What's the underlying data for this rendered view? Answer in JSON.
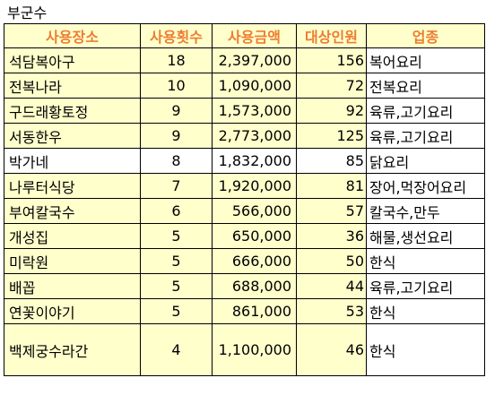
{
  "sheet_title": "부군수",
  "headers": {
    "place": "사용장소",
    "count": "사용횟수",
    "amount": "사용금액",
    "people": "대상인원",
    "business": "업종"
  },
  "rows": [
    {
      "place": "석담복아구",
      "count": "18",
      "amount": "2,397,000",
      "people": "156",
      "business": "복어요리"
    },
    {
      "place": "전복나라",
      "count": "10",
      "amount": "1,090,000",
      "people": "72",
      "business": "전복요리"
    },
    {
      "place": "구드래황토정",
      "count": "9",
      "amount": "1,573,000",
      "people": "92",
      "business": "육류,고기요리"
    },
    {
      "place": "서동한우",
      "count": "9",
      "amount": "2,773,000",
      "people": "125",
      "business": "육류,고기요리"
    },
    {
      "place": "박가네",
      "count": "8",
      "amount": "1,832,000",
      "people": "85",
      "business": "닭요리"
    },
    {
      "place": "나루터식당",
      "count": "7",
      "amount": "1,920,000",
      "people": "81",
      "business": "장어,먹장어요리"
    },
    {
      "place": "부여칼국수",
      "count": "6",
      "amount": "566,000",
      "people": "57",
      "business": "칼국수,만두"
    },
    {
      "place": "개성집",
      "count": "5",
      "amount": "650,000",
      "people": "36",
      "business": "해물,생선요리"
    },
    {
      "place": "미락원",
      "count": "5",
      "amount": "666,000",
      "people": "50",
      "business": "한식"
    },
    {
      "place": "배꼽",
      "count": "5",
      "amount": "688,000",
      "people": "44",
      "business": "육류,고기요리"
    },
    {
      "place": "연꽃이야기",
      "count": "5",
      "amount": "861,000",
      "people": "53",
      "business": "한식"
    },
    {
      "place": "백제궁수라간",
      "count": "4",
      "amount": "1,100,000",
      "people": "46",
      "business": "한식"
    }
  ],
  "colors": {
    "header_text": "#ed7d31",
    "highlight_fill": "#ffffcc",
    "plain_fill": "#ffffff"
  }
}
